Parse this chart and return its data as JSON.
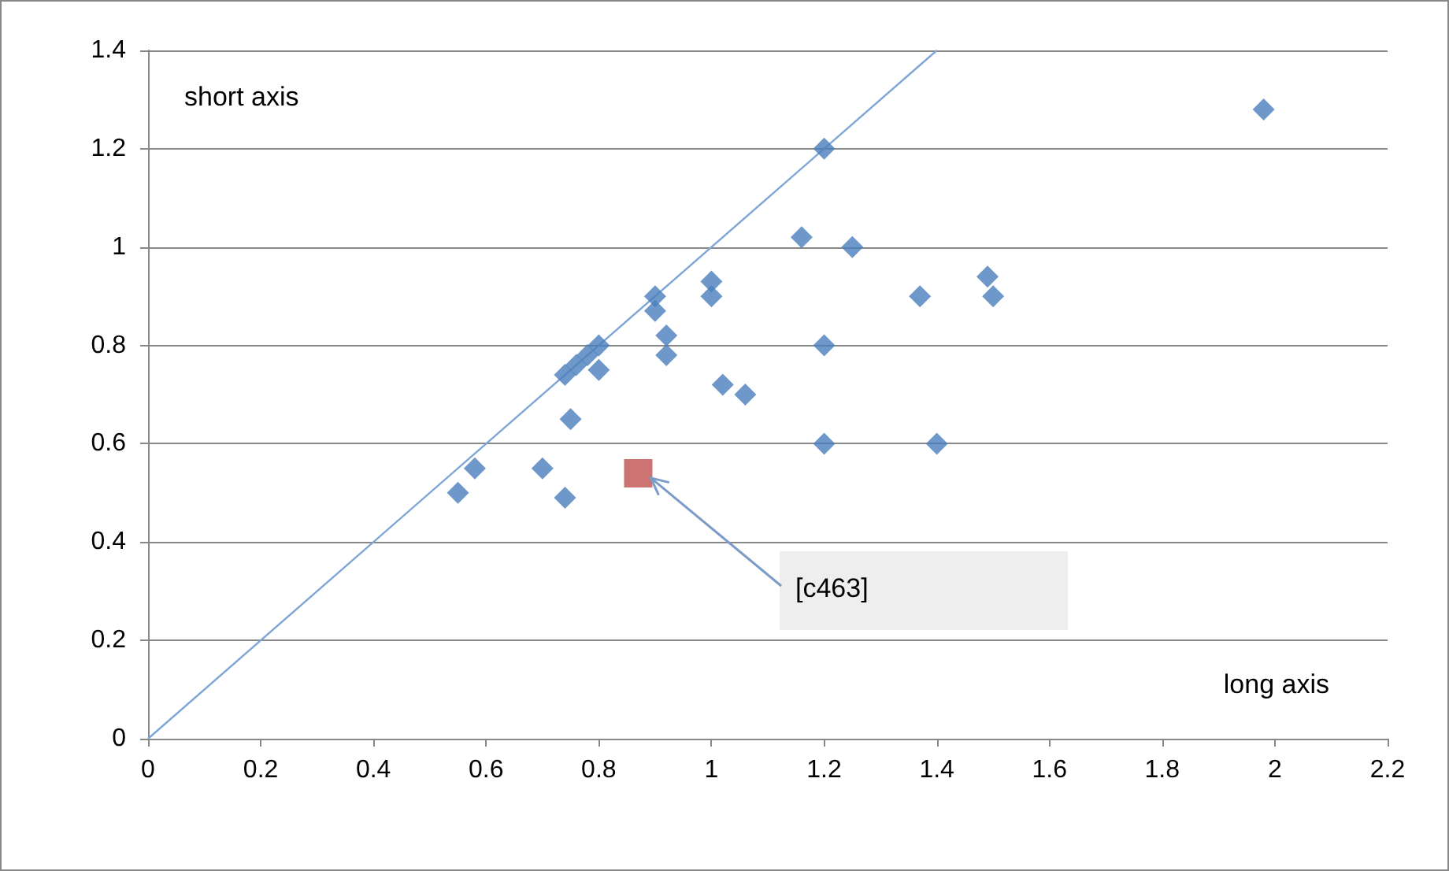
{
  "chart_data": {
    "type": "scatter",
    "xlabel": "long axis",
    "ylabel": "short axis",
    "xlim": [
      0,
      2.2
    ],
    "xticks": [
      0,
      0.2,
      0.4,
      0.6,
      0.8,
      1,
      1.2,
      1.4,
      1.6,
      1.8,
      2,
      2.2
    ],
    "ylim": [
      0,
      1.4
    ],
    "yticks": [
      0,
      0.2,
      0.4,
      0.6,
      0.8,
      1,
      1.2,
      1.4
    ],
    "grid": "y",
    "series": [
      {
        "color": "#4a7ebb",
        "marker": "diamond",
        "x": [
          0.55,
          0.58,
          0.7,
          0.74,
          0.75,
          0.74,
          0.76,
          0.78,
          0.8,
          0.8,
          0.9,
          0.9,
          0.92,
          0.92,
          1.0,
          1.0,
          1.02,
          1.06,
          1.2,
          1.16,
          1.25,
          1.2,
          1.2,
          1.4,
          1.37,
          1.49,
          1.5,
          1.98
        ],
        "values": [
          0.5,
          0.55,
          0.55,
          0.49,
          0.65,
          0.74,
          0.76,
          0.78,
          0.8,
          0.75,
          0.9,
          0.87,
          0.82,
          0.78,
          0.93,
          0.9,
          0.72,
          0.7,
          1.2,
          1.02,
          1.0,
          0.8,
          0.6,
          0.6,
          0.9,
          0.94,
          0.9,
          1.28
        ]
      },
      {
        "color": "#c0504d",
        "marker": "square",
        "x": [
          0.87
        ],
        "values": [
          0.54
        ]
      },
      {
        "type": "line",
        "color": "#7ea6d4",
        "marker": "none",
        "x": [
          0,
          1.4
        ],
        "values": [
          0,
          1.4
        ]
      }
    ],
    "annotations": [
      {
        "text": "[c463]",
        "x": 0.87,
        "y": 0.54
      }
    ]
  }
}
